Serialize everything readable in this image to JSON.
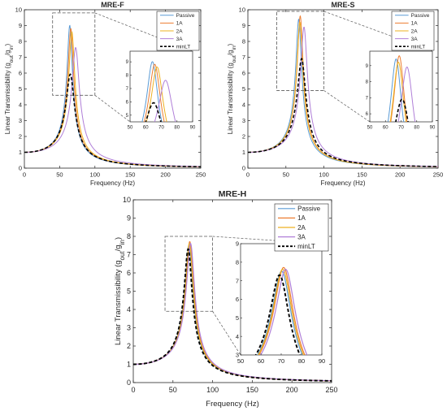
{
  "colors": {
    "Passive": "#5b9bd5",
    "1A": "#ed7d31",
    "2A": "#edb120",
    "3A": "#b07fd8",
    "minLT": "#000000",
    "axis": "#262626",
    "zoom_box": "#595959"
  },
  "chart_data": [
    {
      "type": "line",
      "title": "MRE-F",
      "xlabel": "Frequency (Hz)",
      "ylabel_main": "Linear Transmissibility (g",
      "ylabel_sub_out": "out",
      "ylabel_mid": "/g",
      "ylabel_sub_in": "in",
      "ylabel_tail": ")",
      "xlim": [
        0,
        250
      ],
      "ylim": [
        0,
        10
      ],
      "xticks": [
        "0",
        "50",
        "100",
        "150",
        "200",
        "250"
      ],
      "yticks": [
        "0",
        "1",
        "2",
        "3",
        "4",
        "5",
        "6",
        "7",
        "8",
        "9",
        "10"
      ],
      "legend": {
        "position": "top-right",
        "entries": [
          "Passive",
          "1A",
          "2A",
          "3A",
          "minLT"
        ]
      },
      "series": [
        {
          "name": "Passive",
          "f0": 64.5,
          "peak": 9.0,
          "dash": false
        },
        {
          "name": "1A",
          "f0": 66.0,
          "peak": 8.8,
          "dash": false
        },
        {
          "name": "2A",
          "f0": 67.5,
          "peak": 8.6,
          "dash": false
        },
        {
          "name": "3A",
          "f0": 73.0,
          "peak": 7.6,
          "dash": false
        },
        {
          "name": "minLT",
          "f0": 65.5,
          "peak": 6.0,
          "dash": true,
          "minlt": true
        }
      ],
      "zoom_window": {
        "x": [
          40,
          100
        ],
        "y": [
          4.6,
          9.8
        ]
      },
      "inset": {
        "xlim": [
          50,
          90
        ],
        "ylim": [
          4.5,
          9.8
        ],
        "xticks": [
          "50",
          "60",
          "70",
          "80",
          "90"
        ],
        "yticks": [
          "5",
          "6",
          "7",
          "8",
          "9"
        ]
      }
    },
    {
      "type": "line",
      "title": "MRE-S",
      "xlabel": "Frequency (Hz)",
      "ylabel_main": "Linear Transmissibility (g",
      "ylabel_sub_out": "out",
      "ylabel_mid": "/g",
      "ylabel_sub_in": "in",
      "ylabel_tail": ")",
      "xlim": [
        0,
        250
      ],
      "ylim": [
        0,
        10
      ],
      "xticks": [
        "0",
        "50",
        "100",
        "150",
        "200",
        "250"
      ],
      "yticks": [
        "0",
        "1",
        "2",
        "3",
        "4",
        "5",
        "6",
        "7",
        "8",
        "9",
        "10"
      ],
      "legend": {
        "position": "top-right",
        "entries": [
          "Passive",
          "1A",
          "2A",
          "3A",
          "minLT"
        ]
      },
      "series": [
        {
          "name": "Passive",
          "f0": 67.0,
          "peak": 9.4,
          "dash": false
        },
        {
          "name": "1A",
          "f0": 69.0,
          "peak": 9.6,
          "dash": false
        },
        {
          "name": "2A",
          "f0": 68.5,
          "peak": 9.2,
          "dash": false
        },
        {
          "name": "3A",
          "f0": 74.0,
          "peak": 8.9,
          "dash": false
        },
        {
          "name": "minLT",
          "f0": 71.0,
          "peak": 7.0,
          "dash": true,
          "minlt": true
        }
      ],
      "zoom_window": {
        "x": [
          38,
          100
        ],
        "y": [
          4.9,
          9.9
        ]
      },
      "inset": {
        "xlim": [
          50,
          90
        ],
        "ylim": [
          5.5,
          9.9
        ],
        "xticks": [
          "50",
          "60",
          "70",
          "80",
          "90"
        ],
        "yticks": [
          "6",
          "7",
          "8",
          "9"
        ]
      }
    },
    {
      "type": "line",
      "title": "MRE-H",
      "xlabel": "Frequency (Hz)",
      "ylabel_main": "Linear Transmissibility (g",
      "ylabel_sub_out": "out",
      "ylabel_mid": "/g",
      "ylabel_sub_in": "in",
      "ylabel_tail": ")",
      "xlim": [
        0,
        250
      ],
      "ylim": [
        0,
        10
      ],
      "xticks": [
        "0",
        "50",
        "100",
        "150",
        "200",
        "250"
      ],
      "yticks": [
        "0",
        "1",
        "2",
        "3",
        "4",
        "5",
        "6",
        "7",
        "8",
        "9",
        "10"
      ],
      "legend": {
        "position": "top-right",
        "entries": [
          "Passive",
          "1A",
          "2A",
          "3A",
          "minLT"
        ]
      },
      "series": [
        {
          "name": "Passive",
          "f0": 70.5,
          "peak": 7.5,
          "dash": false
        },
        {
          "name": "1A",
          "f0": 71.5,
          "peak": 7.7,
          "dash": false
        },
        {
          "name": "2A",
          "f0": 71.0,
          "peak": 7.6,
          "dash": false
        },
        {
          "name": "3A",
          "f0": 72.5,
          "peak": 7.6,
          "dash": false
        },
        {
          "name": "minLT",
          "f0": 69.5,
          "peak": 7.4,
          "dash": true,
          "minlt": true
        }
      ],
      "zoom_window": {
        "x": [
          40,
          100
        ],
        "y": [
          3.9,
          8.0
        ]
      },
      "inset": {
        "xlim": [
          50,
          90
        ],
        "ylim": [
          3.0,
          9.0
        ],
        "xticks": [
          "50",
          "60",
          "70",
          "80",
          "90"
        ],
        "yticks": [
          "3",
          "4",
          "5",
          "6",
          "7",
          "8",
          "9"
        ]
      }
    }
  ]
}
